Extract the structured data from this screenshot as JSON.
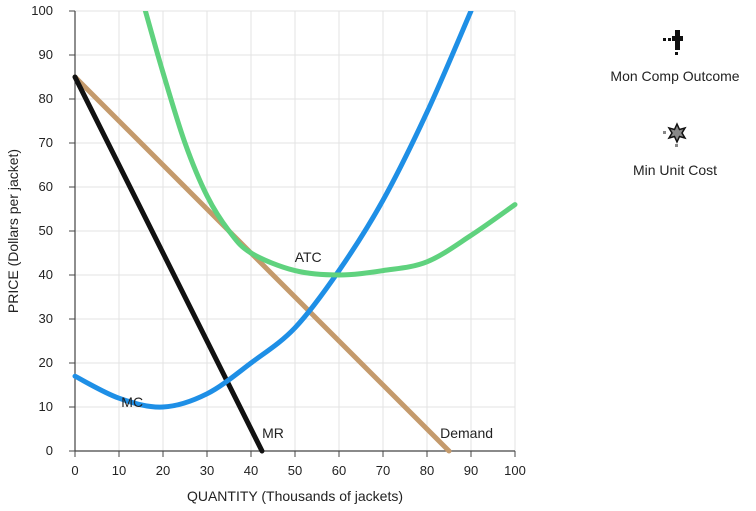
{
  "chart_data": {
    "type": "line",
    "xlabel": "QUANTITY (Thousands of jackets)",
    "ylabel": "PRICE (Dollars per jacket)",
    "xlim": [
      0,
      100
    ],
    "ylim": [
      0,
      100
    ],
    "xticks": [
      0,
      10,
      20,
      30,
      40,
      50,
      60,
      70,
      80,
      90,
      100
    ],
    "yticks": [
      0,
      10,
      20,
      30,
      40,
      50,
      60,
      70,
      80,
      90,
      100
    ],
    "grid": true,
    "series": [
      {
        "name": "Demand",
        "color": "#c49a6c",
        "points": [
          [
            0,
            85
          ],
          [
            85,
            0
          ]
        ]
      },
      {
        "name": "MR",
        "color": "#111111",
        "points": [
          [
            0,
            85
          ],
          [
            42.5,
            0
          ]
        ]
      },
      {
        "name": "MC",
        "color": "#1e8fe6",
        "points": [
          [
            0,
            17
          ],
          [
            10,
            12
          ],
          [
            20,
            10
          ],
          [
            30,
            13
          ],
          [
            40,
            20
          ],
          [
            50,
            28
          ],
          [
            60,
            41
          ],
          [
            70,
            57
          ],
          [
            80,
            77
          ],
          [
            90,
            100
          ]
        ]
      },
      {
        "name": "ATC",
        "color": "#5fd27e",
        "points": [
          [
            16,
            100
          ],
          [
            20,
            86
          ],
          [
            25,
            70
          ],
          [
            30,
            58
          ],
          [
            35,
            50
          ],
          [
            40,
            45
          ],
          [
            50,
            41
          ],
          [
            60,
            40
          ],
          [
            70,
            41
          ],
          [
            80,
            43
          ],
          [
            90,
            49
          ],
          [
            100,
            56
          ]
        ]
      }
    ],
    "labels": [
      {
        "text": "Demand",
        "x": 89,
        "y": 3
      },
      {
        "text": "MR",
        "x": 45,
        "y": 3
      },
      {
        "text": "MC",
        "x": 13,
        "y": 10
      },
      {
        "text": "ATC",
        "x": 53,
        "y": 43
      }
    ]
  },
  "legend": {
    "items": [
      {
        "label": "Mon Comp Outcome",
        "icon": "plus-marker-icon"
      },
      {
        "label": "Min Unit Cost",
        "icon": "star-marker-icon"
      }
    ]
  }
}
